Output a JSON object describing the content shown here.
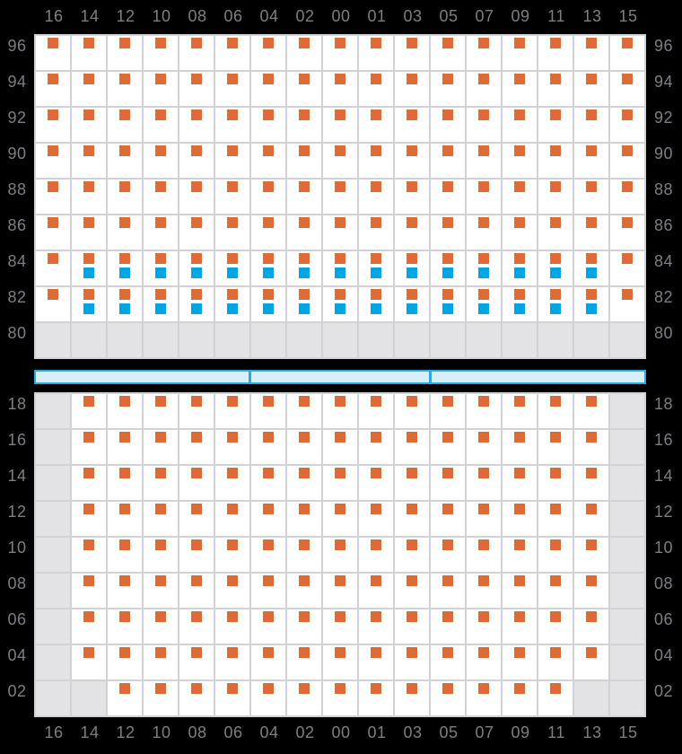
{
  "colors": {
    "background": "#000000",
    "label_text": "#7c7f84",
    "grid_line": "#d2d2d5",
    "cell_white": "#ffffff",
    "cell_gray": "#e3e3e6",
    "orange_marker": "#dc6b35",
    "blue_marker": "#00a6e1",
    "aisle_border": "#29abe2",
    "aisle_fill": "#d9eefb"
  },
  "column_labels": [
    "16",
    "14",
    "12",
    "10",
    "08",
    "06",
    "04",
    "02",
    "00",
    "01",
    "03",
    "05",
    "07",
    "09",
    "11",
    "13",
    "15"
  ],
  "upper_grid": {
    "row_labels": [
      "96",
      "94",
      "92",
      "90",
      "88",
      "86",
      "84",
      "82",
      "80"
    ],
    "rows": [
      "OOOOOOOOOOOOOOOOO",
      "OOOOOOOOOOOOOOOOO",
      "OOOOOOOOOOOOOOOOO",
      "OOOOOOOOOOOOOOOOO",
      "OOOOOOOOOOOOOOOOO",
      "OOOOOOOOOOOOOOOOO",
      "OBBBBBBBBBBBBBBBO",
      "OBBBBBBBBBBBBBBBO",
      "GGGGGGGGGGGGGGGGG"
    ]
  },
  "aisle": {
    "segments_in_columns": [
      6,
      5,
      6
    ]
  },
  "lower_grid": {
    "row_labels": [
      "18",
      "16",
      "14",
      "12",
      "10",
      "08",
      "06",
      "04",
      "02"
    ],
    "rows": [
      "GOOOOOOOOOOOOOOOG",
      "GOOOOOOOOOOOOOOOG",
      "GOOOOOOOOOOOOOOOG",
      "GOOOOOOOOOOOOOOOG",
      "GOOOOOOOOOOOOOOOG",
      "GOOOOOOOOOOOOOOOG",
      "GOOOOOOOOOOOOOOOG",
      "GOOOOOOOOOOOOOOOG",
      "GGOOOOOOOOOOOOOGG"
    ]
  },
  "cell_states_legend": {
    "O": "white cell with orange marker",
    "B": "white cell with orange and blue markers",
    "G": "gray empty cell"
  }
}
